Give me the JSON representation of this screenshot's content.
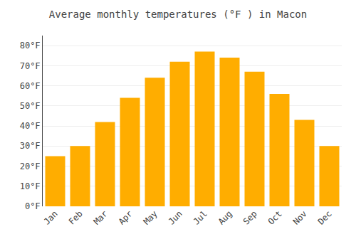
{
  "chart_data": {
    "type": "bar",
    "title": "Average monthly temperatures (°F ) in Macon",
    "categories": [
      "Jan",
      "Feb",
      "Mar",
      "Apr",
      "May",
      "Jun",
      "Jul",
      "Aug",
      "Sep",
      "Oct",
      "Nov",
      "Dec"
    ],
    "values": [
      25,
      30,
      42,
      54,
      64,
      72,
      77,
      74,
      67,
      56,
      43,
      30
    ],
    "color": "#FFAD00",
    "ylim": [
      0,
      85
    ],
    "yticks": [
      {
        "value": 0,
        "label": "0°F"
      },
      {
        "value": 10,
        "label": "10°F"
      },
      {
        "value": 20,
        "label": "20°F"
      },
      {
        "value": 30,
        "label": "30°F"
      },
      {
        "value": 40,
        "label": "40°F"
      },
      {
        "value": 50,
        "label": "50°F"
      },
      {
        "value": 60,
        "label": "60°F"
      },
      {
        "value": 70,
        "label": "70°F"
      },
      {
        "value": 80,
        "label": "80°F"
      }
    ],
    "grid": true
  }
}
